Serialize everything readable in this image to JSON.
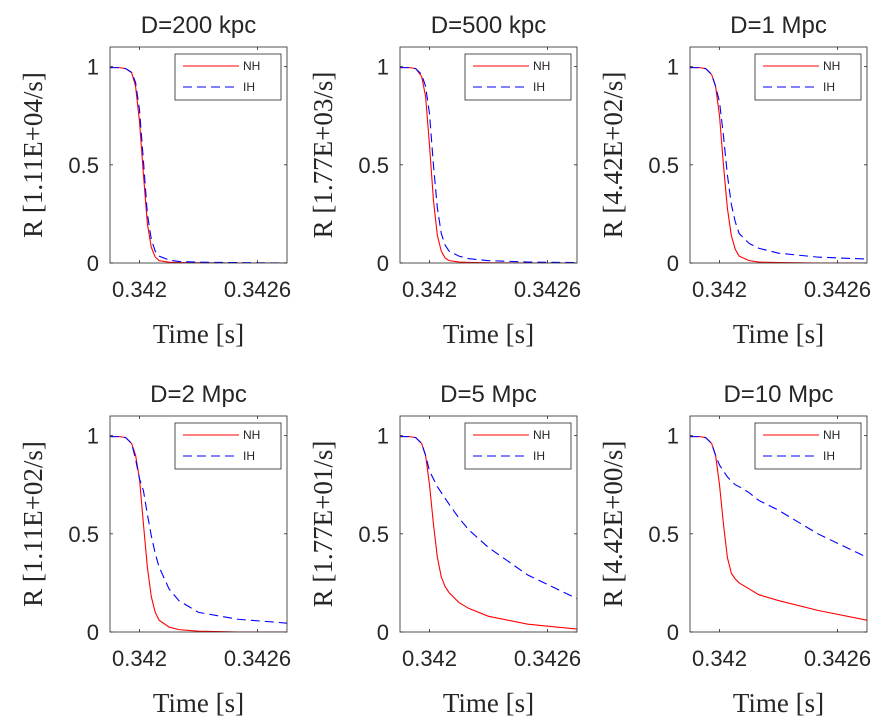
{
  "chart_data": [
    {
      "type": "line",
      "title": "D=200 kpc",
      "xlabel": "Time [s]",
      "ylabel": "R [1.11E+04/s]",
      "xlim": [
        0.34185,
        0.34275
      ],
      "ylim": [
        0,
        1.1
      ],
      "xticks": [
        0.342,
        0.3426
      ],
      "xtick_labels": [
        "0.342",
        "0.3426"
      ],
      "yticks": [
        0,
        0.5,
        1
      ],
      "ytick_labels": [
        "0",
        "0.5",
        "1"
      ],
      "legend": {
        "position": "top-right",
        "entries": [
          "NH",
          "IH"
        ]
      },
      "series": [
        {
          "name": "NH",
          "color": "#ff0000",
          "style": "solid",
          "x": [
            0.34185,
            0.3419,
            0.34193,
            0.34196,
            0.34198,
            0.342,
            0.34202,
            0.34204,
            0.34206,
            0.34208,
            0.3421,
            0.34215,
            0.3422,
            0.3423,
            0.3425,
            0.34275
          ],
          "y": [
            0.995,
            0.995,
            0.99,
            0.97,
            0.9,
            0.72,
            0.45,
            0.2,
            0.08,
            0.03,
            0.012,
            0.004,
            0.002,
            0.001,
            0.0,
            0.0
          ]
        },
        {
          "name": "IH",
          "color": "#0000ff",
          "style": "dashed",
          "x": [
            0.34185,
            0.3419,
            0.34193,
            0.34196,
            0.34198,
            0.342,
            0.34202,
            0.34204,
            0.34206,
            0.34208,
            0.3421,
            0.34215,
            0.3422,
            0.3423,
            0.3425,
            0.34275
          ],
          "y": [
            0.995,
            0.995,
            0.99,
            0.97,
            0.92,
            0.78,
            0.52,
            0.25,
            0.12,
            0.06,
            0.035,
            0.015,
            0.008,
            0.004,
            0.002,
            0.0
          ]
        }
      ]
    },
    {
      "type": "line",
      "title": "D=500 kpc",
      "xlabel": "Time [s]",
      "ylabel": "R [1.77E+03/s]",
      "xlim": [
        0.34185,
        0.34275
      ],
      "ylim": [
        0,
        1.1
      ],
      "xticks": [
        0.342,
        0.3426
      ],
      "xtick_labels": [
        "0.342",
        "0.3426"
      ],
      "yticks": [
        0,
        0.5,
        1
      ],
      "ytick_labels": [
        "0",
        "0.5",
        "1"
      ],
      "legend": {
        "position": "top-right",
        "entries": [
          "NH",
          "IH"
        ]
      },
      "series": [
        {
          "name": "NH",
          "color": "#ff0000",
          "style": "solid",
          "x": [
            0.34185,
            0.3419,
            0.34193,
            0.34196,
            0.34198,
            0.342,
            0.34202,
            0.34204,
            0.34206,
            0.34208,
            0.3421,
            0.34215,
            0.3422,
            0.3423,
            0.3425,
            0.34275
          ],
          "y": [
            0.995,
            0.995,
            0.99,
            0.95,
            0.85,
            0.6,
            0.32,
            0.14,
            0.06,
            0.025,
            0.012,
            0.005,
            0.003,
            0.001,
            0.0,
            0.0
          ]
        },
        {
          "name": "IH",
          "color": "#0000ff",
          "style": "dashed",
          "x": [
            0.34185,
            0.3419,
            0.34193,
            0.34196,
            0.34198,
            0.342,
            0.34202,
            0.34204,
            0.34206,
            0.34208,
            0.3421,
            0.34215,
            0.3422,
            0.3423,
            0.3425,
            0.34275
          ],
          "y": [
            0.995,
            0.995,
            0.99,
            0.96,
            0.9,
            0.76,
            0.5,
            0.28,
            0.15,
            0.09,
            0.06,
            0.035,
            0.022,
            0.012,
            0.005,
            0.002
          ]
        }
      ]
    },
    {
      "type": "line",
      "title": "D=1 Mpc",
      "xlabel": "Time [s]",
      "ylabel": "R [4.42E+02/s]",
      "xlim": [
        0.34185,
        0.34275
      ],
      "ylim": [
        0,
        1.1
      ],
      "xticks": [
        0.342,
        0.3426
      ],
      "xtick_labels": [
        "0.342",
        "0.3426"
      ],
      "yticks": [
        0,
        0.5,
        1
      ],
      "ytick_labels": [
        "0",
        "0.5",
        "1"
      ],
      "legend": {
        "position": "top-right",
        "entries": [
          "NH",
          "IH"
        ]
      },
      "series": [
        {
          "name": "NH",
          "color": "#ff0000",
          "style": "solid",
          "x": [
            0.34185,
            0.3419,
            0.34193,
            0.34196,
            0.34198,
            0.342,
            0.34202,
            0.34204,
            0.34206,
            0.34208,
            0.3421,
            0.34215,
            0.3422,
            0.3423,
            0.3425,
            0.34275
          ],
          "y": [
            0.995,
            0.995,
            0.99,
            0.96,
            0.9,
            0.75,
            0.5,
            0.28,
            0.14,
            0.07,
            0.035,
            0.012,
            0.005,
            0.002,
            0.0,
            0.0
          ]
        },
        {
          "name": "IH",
          "color": "#0000ff",
          "style": "dashed",
          "x": [
            0.34185,
            0.3419,
            0.34193,
            0.34196,
            0.34198,
            0.342,
            0.34202,
            0.34204,
            0.34206,
            0.34208,
            0.3421,
            0.34215,
            0.3422,
            0.3423,
            0.3425,
            0.34275
          ],
          "y": [
            0.995,
            0.995,
            0.99,
            0.96,
            0.9,
            0.82,
            0.65,
            0.45,
            0.3,
            0.21,
            0.15,
            0.1,
            0.075,
            0.05,
            0.03,
            0.02
          ]
        }
      ]
    },
    {
      "type": "line",
      "title": "D=2 Mpc",
      "xlabel": "Time [s]",
      "ylabel": "R [1.11E+02/s]",
      "xlim": [
        0.34185,
        0.34275
      ],
      "ylim": [
        0,
        1.1
      ],
      "xticks": [
        0.342,
        0.3426
      ],
      "xtick_labels": [
        "0.342",
        "0.3426"
      ],
      "yticks": [
        0,
        0.5,
        1
      ],
      "ytick_labels": [
        "0",
        "0.5",
        "1"
      ],
      "legend": {
        "position": "top-right",
        "entries": [
          "NH",
          "IH"
        ]
      },
      "series": [
        {
          "name": "NH",
          "color": "#ff0000",
          "style": "solid",
          "x": [
            0.34185,
            0.3419,
            0.34193,
            0.34196,
            0.34198,
            0.342,
            0.34202,
            0.34204,
            0.34206,
            0.34208,
            0.3421,
            0.34215,
            0.3422,
            0.3423,
            0.3425,
            0.34275
          ],
          "y": [
            0.995,
            0.995,
            0.99,
            0.96,
            0.9,
            0.78,
            0.55,
            0.33,
            0.18,
            0.1,
            0.06,
            0.025,
            0.012,
            0.004,
            0.0,
            0.0
          ]
        },
        {
          "name": "IH",
          "color": "#0000ff",
          "style": "dashed",
          "x": [
            0.34185,
            0.3419,
            0.34193,
            0.34196,
            0.34198,
            0.342,
            0.34202,
            0.34204,
            0.34206,
            0.34208,
            0.3421,
            0.34215,
            0.3422,
            0.3423,
            0.3425,
            0.34275
          ],
          "y": [
            0.995,
            0.995,
            0.99,
            0.96,
            0.88,
            0.78,
            0.72,
            0.6,
            0.49,
            0.4,
            0.33,
            0.22,
            0.16,
            0.1,
            0.065,
            0.045
          ]
        }
      ]
    },
    {
      "type": "line",
      "title": "D=5 Mpc",
      "xlabel": "Time [s]",
      "ylabel": "R [1.77E+01/s]",
      "xlim": [
        0.34185,
        0.34275
      ],
      "ylim": [
        0,
        1.1
      ],
      "xticks": [
        0.342,
        0.3426
      ],
      "xtick_labels": [
        "0.342",
        "0.3426"
      ],
      "yticks": [
        0,
        0.5,
        1
      ],
      "ytick_labels": [
        "0",
        "0.5",
        "1"
      ],
      "legend": {
        "position": "top-right",
        "entries": [
          "NH",
          "IH"
        ]
      },
      "series": [
        {
          "name": "NH",
          "color": "#ff0000",
          "style": "solid",
          "x": [
            0.34185,
            0.3419,
            0.34193,
            0.34196,
            0.34198,
            0.342,
            0.34202,
            0.34204,
            0.34206,
            0.34208,
            0.3421,
            0.34215,
            0.3422,
            0.3423,
            0.3425,
            0.34275
          ],
          "y": [
            0.995,
            0.995,
            0.99,
            0.96,
            0.9,
            0.75,
            0.55,
            0.38,
            0.28,
            0.23,
            0.2,
            0.15,
            0.12,
            0.08,
            0.04,
            0.015
          ]
        },
        {
          "name": "IH",
          "color": "#0000ff",
          "style": "dashed",
          "x": [
            0.34185,
            0.3419,
            0.34193,
            0.34196,
            0.34198,
            0.342,
            0.34202,
            0.34204,
            0.34206,
            0.34208,
            0.3421,
            0.34215,
            0.3422,
            0.3423,
            0.3425,
            0.34275
          ],
          "y": [
            0.995,
            0.995,
            0.99,
            0.96,
            0.9,
            0.82,
            0.78,
            0.74,
            0.71,
            0.68,
            0.65,
            0.58,
            0.52,
            0.43,
            0.29,
            0.17
          ]
        }
      ]
    },
    {
      "type": "line",
      "title": "D=10 Mpc",
      "xlabel": "Time [s]",
      "ylabel": "R [4.42E+00/s]",
      "xlim": [
        0.34185,
        0.34275
      ],
      "ylim": [
        0,
        1.1
      ],
      "xticks": [
        0.342,
        0.3426
      ],
      "xtick_labels": [
        "0.342",
        "0.3426"
      ],
      "yticks": [
        0,
        0.5,
        1
      ],
      "ytick_labels": [
        "0",
        "0.5",
        "1"
      ],
      "legend": {
        "position": "top-right",
        "entries": [
          "NH",
          "IH"
        ]
      },
      "series": [
        {
          "name": "NH",
          "color": "#ff0000",
          "style": "solid",
          "x": [
            0.34185,
            0.3419,
            0.34193,
            0.34196,
            0.34198,
            0.342,
            0.34202,
            0.34204,
            0.34206,
            0.34208,
            0.3421,
            0.34215,
            0.3422,
            0.3423,
            0.3425,
            0.34275
          ],
          "y": [
            0.995,
            0.995,
            0.99,
            0.96,
            0.9,
            0.75,
            0.55,
            0.38,
            0.3,
            0.27,
            0.25,
            0.22,
            0.19,
            0.16,
            0.11,
            0.06
          ]
        },
        {
          "name": "IH",
          "color": "#0000ff",
          "style": "dashed",
          "x": [
            0.34185,
            0.3419,
            0.34193,
            0.34196,
            0.34198,
            0.342,
            0.34202,
            0.34204,
            0.34206,
            0.34208,
            0.3421,
            0.34215,
            0.3422,
            0.3423,
            0.3425,
            0.34275
          ],
          "y": [
            0.995,
            0.995,
            0.99,
            0.96,
            0.9,
            0.85,
            0.82,
            0.79,
            0.77,
            0.75,
            0.74,
            0.71,
            0.67,
            0.62,
            0.5,
            0.38
          ]
        }
      ]
    }
  ]
}
